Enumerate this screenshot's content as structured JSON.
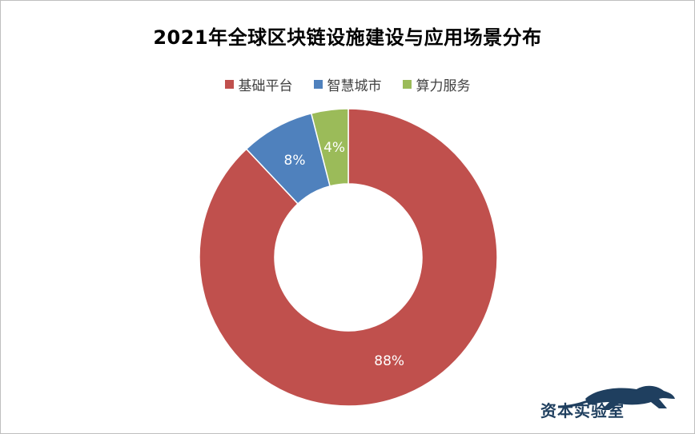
{
  "chart_data": {
    "type": "donut",
    "title": "2021年全球区块链设施建设与应用场景分布",
    "categories": [
      "基础平台",
      "智慧城市",
      "算力服务"
    ],
    "values": [
      88,
      8,
      4
    ],
    "data_labels": [
      "88%",
      "8%",
      "4%"
    ],
    "colors": [
      "#c0504d",
      "#4f81bd",
      "#9bbb59"
    ],
    "legend_position": "top",
    "unit": "%"
  },
  "watermark": {
    "text": "资本实验室",
    "icon": "panther-icon",
    "color": "#1f3f5f"
  }
}
